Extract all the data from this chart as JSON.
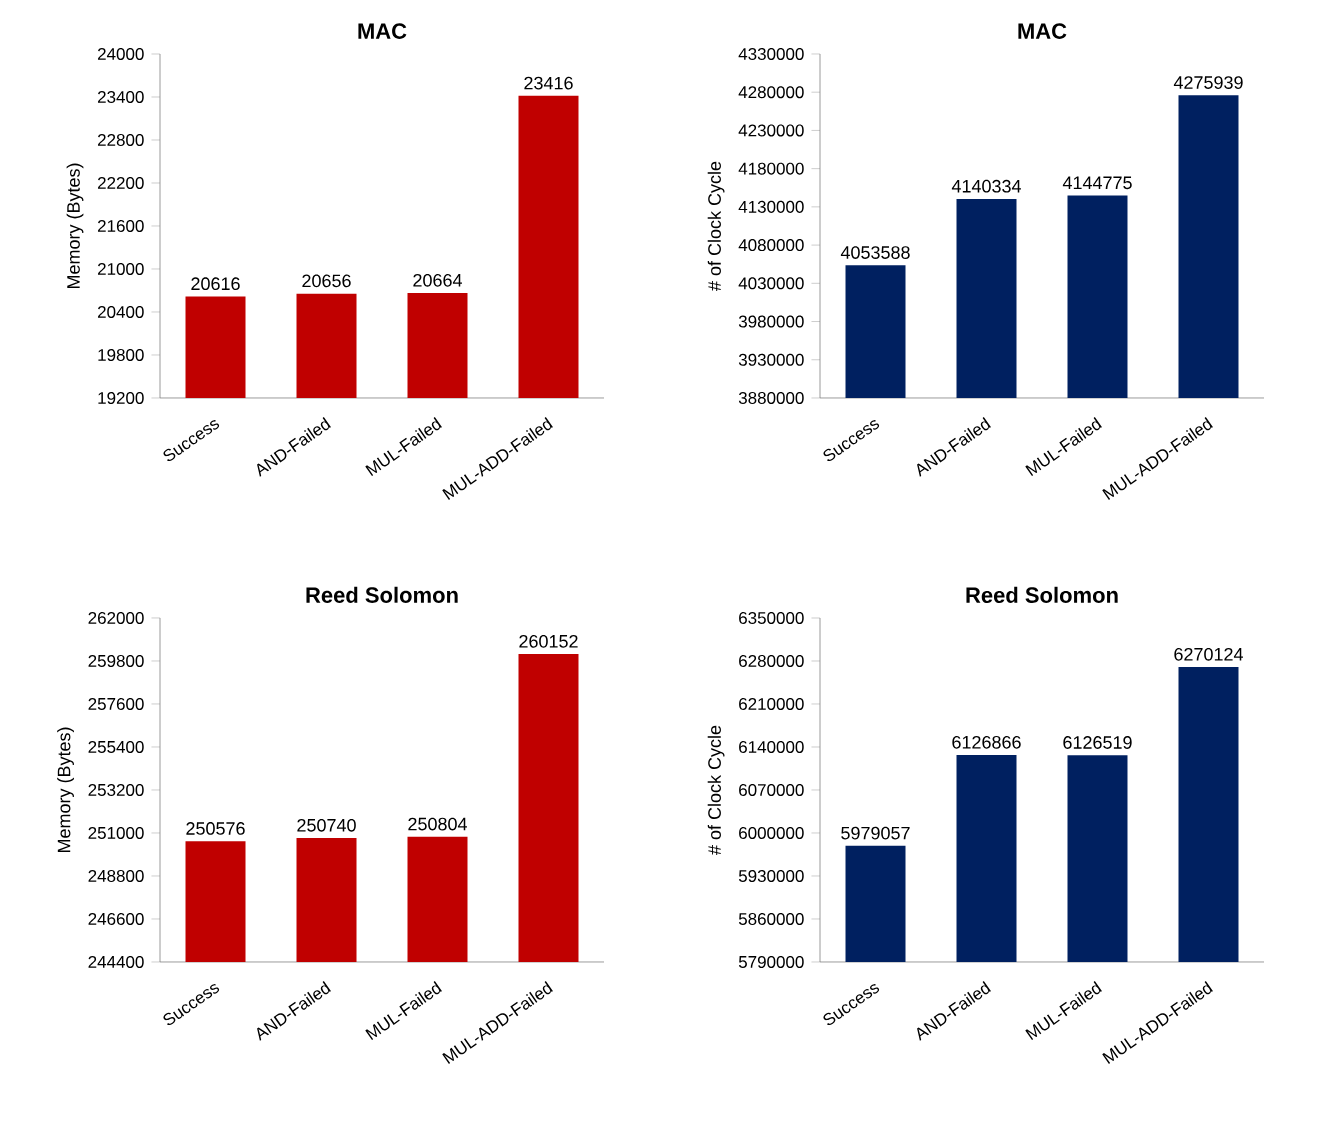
{
  "chart_data": [
    {
      "type": "bar",
      "title": "MAC",
      "ylabel": "Memory (Bytes)",
      "categories": [
        "Success",
        "AND-Failed",
        "MUL-Failed",
        "MUL-ADD-Failed"
      ],
      "values": [
        20616,
        20656,
        20664,
        23416
      ],
      "color": "#c00000",
      "ylim": [
        19200,
        24000
      ],
      "yticks": [
        19200,
        19800,
        20400,
        21000,
        21600,
        22200,
        22800,
        23400,
        24000
      ],
      "data_labels": true
    },
    {
      "type": "bar",
      "title": "MAC",
      "ylabel": "# of Clock Cycle",
      "categories": [
        "Success",
        "AND-Failed",
        "MUL-Failed",
        "MUL-ADD-Failed"
      ],
      "values": [
        4053588,
        4140334,
        4144775,
        4275939
      ],
      "color": "#002060",
      "ylim": [
        3880000,
        4330000
      ],
      "yticks": [
        3880000,
        3930000,
        3980000,
        4030000,
        4080000,
        4130000,
        4180000,
        4230000,
        4280000,
        4330000
      ],
      "data_labels": true
    },
    {
      "type": "bar",
      "title": "Reed Solomon",
      "ylabel": "Memory (Bytes)",
      "categories": [
        "Success",
        "AND-Failed",
        "MUL-Failed",
        "MUL-ADD-Failed"
      ],
      "values": [
        250576,
        250740,
        250804,
        260152
      ],
      "color": "#c00000",
      "ylim": [
        244400,
        262000
      ],
      "yticks": [
        244400,
        246600,
        248800,
        251000,
        253200,
        255400,
        257600,
        259800,
        262000
      ],
      "data_labels": true
    },
    {
      "type": "bar",
      "title": "Reed Solomon",
      "ylabel": "# of Clock Cycle",
      "categories": [
        "Success",
        "AND-Failed",
        "MUL-Failed",
        "MUL-ADD-Failed"
      ],
      "values": [
        5979057,
        6126866,
        6126519,
        6270124
      ],
      "color": "#002060",
      "ylim": [
        5790000,
        6350000
      ],
      "yticks": [
        5790000,
        5860000,
        5930000,
        6000000,
        6070000,
        6140000,
        6210000,
        6280000,
        6350000
      ],
      "data_labels": true
    }
  ]
}
